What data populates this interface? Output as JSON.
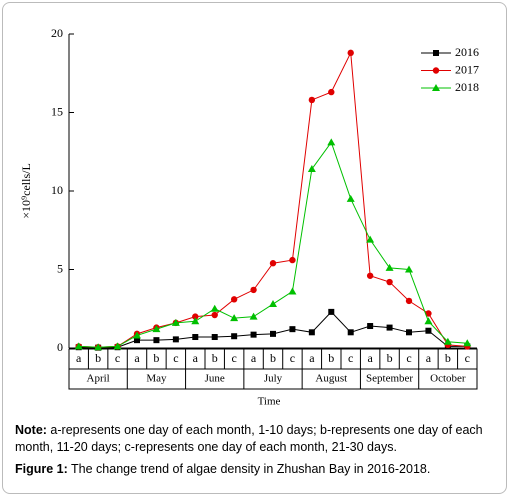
{
  "chart_data": {
    "type": "line",
    "y_label": "×10⁹cells/L",
    "x_label": "Time",
    "categories": [
      "a",
      "b",
      "c",
      "a",
      "b",
      "c",
      "a",
      "b",
      "c",
      "a",
      "b",
      "c",
      "a",
      "b",
      "c",
      "a",
      "b",
      "c",
      "a",
      "b",
      "c"
    ],
    "groups": [
      "April",
      "May",
      "June",
      "July",
      "August",
      "September",
      "October"
    ],
    "ylim": [
      0,
      20
    ],
    "yticks": [
      0,
      5,
      10,
      15,
      20
    ],
    "series": [
      {
        "name": "2016",
        "color": "#000000",
        "marker": "square",
        "values": [
          0.05,
          0.02,
          0.05,
          0.5,
          0.5,
          0.55,
          0.7,
          0.7,
          0.75,
          0.85,
          0.9,
          1.2,
          1.0,
          2.3,
          1.0,
          1.4,
          1.3,
          1.0,
          1.1,
          0.1,
          0.1
        ]
      },
      {
        "name": "2017",
        "color": "#e00000",
        "marker": "circle",
        "values": [
          0.1,
          0.05,
          0.1,
          0.9,
          1.3,
          1.6,
          2.0,
          2.1,
          3.1,
          3.7,
          5.4,
          5.6,
          15.8,
          16.3,
          18.8,
          4.6,
          4.2,
          3.0,
          2.2,
          0.2,
          0.1
        ]
      },
      {
        "name": "2018",
        "color": "#00c000",
        "marker": "triangle",
        "values": [
          0.1,
          0.05,
          0.1,
          0.8,
          1.2,
          1.6,
          1.7,
          2.5,
          1.9,
          2.0,
          2.8,
          3.6,
          11.4,
          13.1,
          9.5,
          6.9,
          5.1,
          5.0,
          1.7,
          0.4,
          0.3
        ]
      }
    ]
  },
  "note": {
    "label": "Note:",
    "text": " a-represents one day of each month, 1-10 days; b-represents one day of each month, 11-20 days; c-represents one day of each month, 21-30 days."
  },
  "caption": {
    "label": "Figure 1:",
    "text": " The change trend of algae density in Zhushan Bay in 2016-2018."
  }
}
